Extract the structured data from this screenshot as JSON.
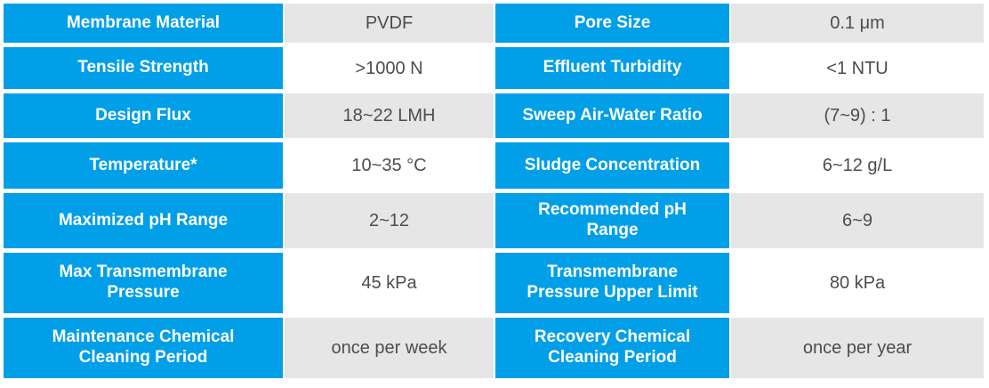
{
  "table": {
    "colors": {
      "label_bg": "#009FE8",
      "label_text": "#FFFFFF",
      "value_bg_odd": "#E6E6E6",
      "value_bg_even": "#FFFFFF",
      "value_text": "#4D4D4F"
    },
    "rows": [
      {
        "left_label": "Membrane Material",
        "left_value": "PVDF",
        "right_label": "Pore Size",
        "right_value": "0.1 μm"
      },
      {
        "left_label": "Tensile Strength",
        "left_value": ">1000 N",
        "right_label": "Effluent Turbidity",
        "right_value": "<1 NTU"
      },
      {
        "left_label": "Design Flux",
        "left_value": "18~22 LMH",
        "right_label": "Sweep Air-Water Ratio",
        "right_value": "(7~9) : 1"
      },
      {
        "left_label": "Temperature*",
        "left_value": "10~35 °C",
        "right_label": "Sludge Concentration",
        "right_value": "6~12 g/L"
      },
      {
        "left_label": "Maximized pH Range",
        "left_value": "2~12",
        "right_label": "Recommended pH Range",
        "right_value": "6~9"
      },
      {
        "left_label": "Max Transmembrane Pressure",
        "left_value": "45 kPa",
        "right_label": "Transmembrane Pressure Upper Limit",
        "right_value": "80 kPa"
      },
      {
        "left_label": "Maintenance Chemical Cleaning Period",
        "left_value": "once per week",
        "right_label": "Recovery Chemical Cleaning Period",
        "right_value": "once per year"
      }
    ]
  }
}
